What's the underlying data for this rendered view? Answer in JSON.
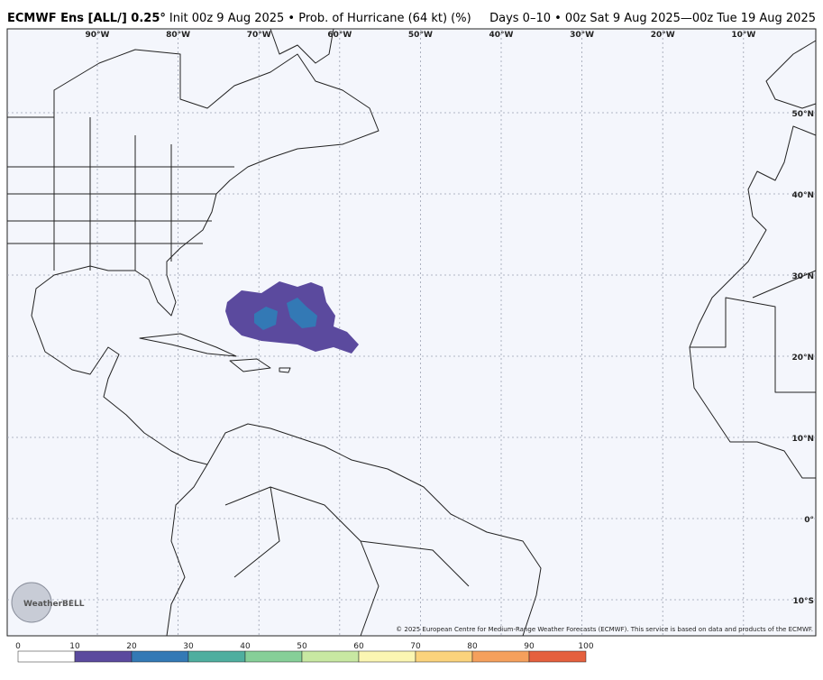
{
  "header": {
    "title_bold": "ECMWF Ens [ALL/] 0.25°",
    "title_rest": "Init 00z 9 Aug 2025 • Prob. of Hurricane (64 kt) (%)",
    "valid": "Days 0–10 • 00z Sat 9 Aug 2025—00z Tue 19 Aug 2025"
  },
  "map": {
    "lon_labels": [
      "90°W",
      "80°W",
      "70°W",
      "60°W",
      "50°W",
      "40°W",
      "30°W",
      "20°W",
      "10°W"
    ],
    "lat_labels": [
      "50°N",
      "40°N",
      "30°N",
      "20°N",
      "10°N",
      "0°",
      "10°S"
    ],
    "copyright": "© 2025 European Centre for Medium-Range Weather Forecasts (ECMWF). This service is based on data and products of the ECMWF.",
    "logo": "WeatherBELL"
  },
  "colorbar": {
    "ticks": [
      0,
      10,
      20,
      30,
      40,
      50,
      60,
      70,
      80,
      90,
      100
    ],
    "colors": [
      "#ffffff",
      "#5b4a9e",
      "#3379b5",
      "#4fae9f",
      "#86cf98",
      "#c8e8a2",
      "#fbf6b2",
      "#fbd37c",
      "#f5a05c",
      "#e5603e",
      "#a50f45"
    ]
  }
}
